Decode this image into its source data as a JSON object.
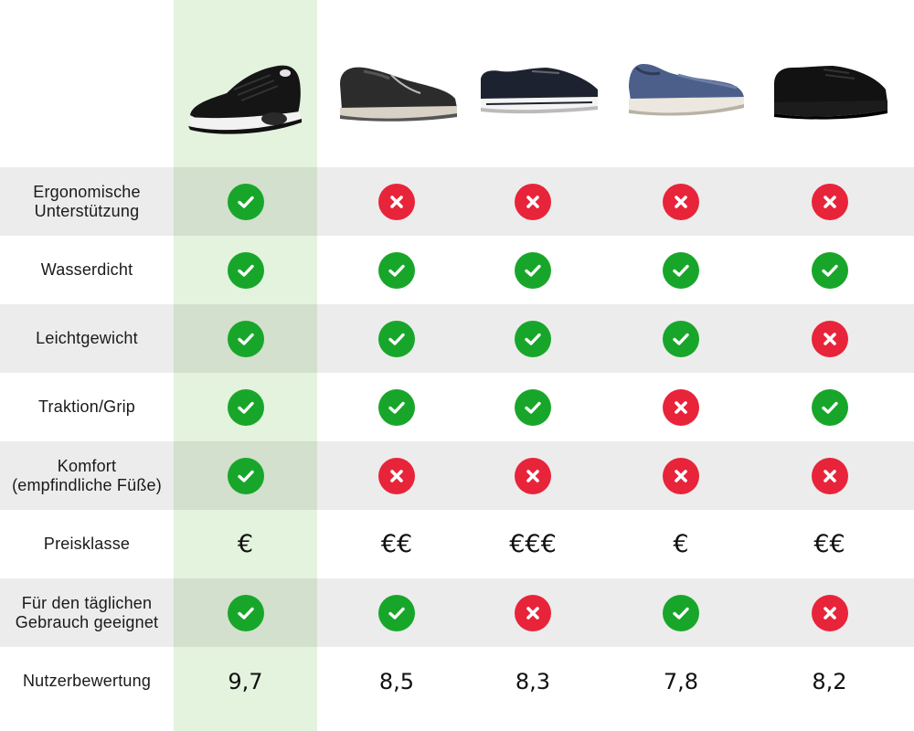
{
  "products": [
    {
      "image": "black-knit-sneaker-image",
      "highlight": true
    },
    {
      "image": "grey-leather-zip-shoe-image"
    },
    {
      "image": "navy-leather-sneaker-image"
    },
    {
      "image": "blue-knit-slip-on-image"
    },
    {
      "image": "black-comfort-shoe-image"
    }
  ],
  "rows": [
    {
      "label": "Ergonomische\nUnterstützung",
      "values": [
        "check",
        "cross",
        "cross",
        "cross",
        "cross"
      ],
      "shaded": true
    },
    {
      "label": "Wasserdicht",
      "values": [
        "check",
        "check",
        "check",
        "check",
        "check"
      ],
      "shaded": false
    },
    {
      "label": "Leichtgewicht",
      "values": [
        "check",
        "check",
        "check",
        "check",
        "cross"
      ],
      "shaded": true
    },
    {
      "label": "Traktion/Grip",
      "values": [
        "check",
        "check",
        "check",
        "cross",
        "check"
      ],
      "shaded": false
    },
    {
      "label": "Komfort\n(empfindliche Füße)",
      "values": [
        "check",
        "cross",
        "cross",
        "cross",
        "cross"
      ],
      "shaded": true
    },
    {
      "label": "Preisklasse",
      "values": [
        "€",
        "€€",
        "€€€",
        "€",
        "€€"
      ],
      "shaded": false
    },
    {
      "label": "Für den täglichen\nGebrauch geeignet",
      "values": [
        "check",
        "check",
        "cross",
        "check",
        "cross"
      ],
      "shaded": true
    },
    {
      "label": "Nutzerbewertung",
      "values": [
        "9,7",
        "8,5",
        "8,3",
        "7,8",
        "8,2"
      ],
      "shaded": false
    }
  ],
  "colors": {
    "highlight": "#e3f3de",
    "check": "#18a62a",
    "cross": "#e8243a",
    "shaded": "#ececec"
  }
}
